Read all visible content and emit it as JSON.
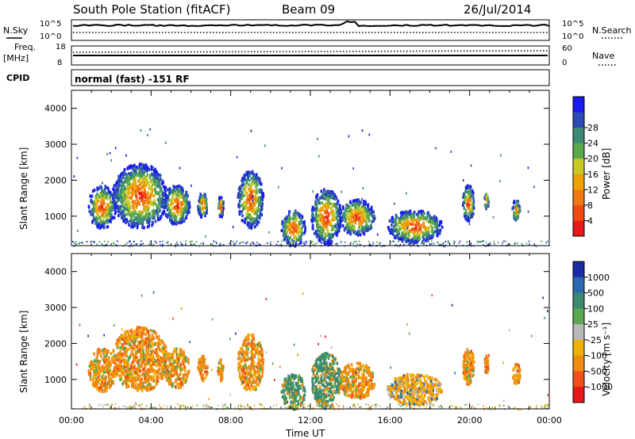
{
  "header": {
    "station": "South Pole Station (fitACF)",
    "beam": "Beam 09",
    "date": "26/Jul/2014"
  },
  "noise_panel": {
    "left_label": "N.Sky",
    "right_label": "N.Search",
    "left_ticks": [
      "10^5",
      "10^0"
    ],
    "right_ticks": [
      "10^5",
      "10^0"
    ]
  },
  "freq_panel": {
    "left_label_line1": "Freq.",
    "left_label_line2": "[MHz]",
    "right_label": "Nave",
    "left_ticks": [
      "18",
      "8"
    ],
    "right_ticks": [
      "60",
      "0"
    ]
  },
  "cpid_panel": {
    "label": "CPID",
    "text": "normal (fast) -151 RF"
  },
  "axes": {
    "xlabel": "Time UT",
    "x_ticks": [
      "00:00",
      "04:00",
      "08:00",
      "12:00",
      "16:00",
      "20:00",
      "00:00"
    ],
    "ylabel": "Slant Range [km]",
    "y_ticks": [
      "1000",
      "2000",
      "3000",
      "4000"
    ],
    "ylim": [
      180,
      4500
    ]
  },
  "power_colorbar": {
    "label": "Power [dB]",
    "ticks": [
      "4",
      "8",
      "12",
      "16",
      "20",
      "24",
      "28"
    ],
    "colors": [
      "#1a1af0",
      "#2a4ab8",
      "#3c8a72",
      "#5aa84a",
      "#c8c828",
      "#f0a000",
      "#f07a10",
      "#f04a10",
      "#e81818"
    ]
  },
  "velocity_colorbar": {
    "label": "Velocity [m s⁻¹]",
    "ticks": [
      "1000",
      "500",
      "100",
      "25",
      "-25",
      "-100",
      "-500",
      "-1000"
    ],
    "colors": [
      "#1a2aa8",
      "#2a6ab0",
      "#3c8a6e",
      "#5aa850",
      "#b8b8b8",
      "#f0b000",
      "#f08a10",
      "#f05018",
      "#e81818"
    ]
  },
  "chart_data": {
    "type": "heatmap",
    "x_range_hours": [
      0,
      24
    ],
    "y_range_km": [
      180,
      4500
    ],
    "echo_regions": [
      {
        "t0": 0.8,
        "t1": 2.2,
        "r0": 700,
        "r1": 1900
      },
      {
        "t0": 2.0,
        "t1": 4.8,
        "r0": 700,
        "r1": 2500
      },
      {
        "t0": 4.6,
        "t1": 5.9,
        "r0": 800,
        "r1": 1900
      },
      {
        "t0": 6.3,
        "t1": 6.8,
        "r0": 1000,
        "r1": 1700
      },
      {
        "t0": 7.3,
        "t1": 7.6,
        "r0": 1000,
        "r1": 1600
      },
      {
        "t0": 8.3,
        "t1": 9.6,
        "r0": 700,
        "r1": 2300
      },
      {
        "t0": 10.5,
        "t1": 11.7,
        "r0": 200,
        "r1": 1200
      },
      {
        "t0": 12.0,
        "t1": 13.5,
        "r0": 250,
        "r1": 1800
      },
      {
        "t0": 13.4,
        "t1": 15.2,
        "r0": 500,
        "r1": 1500
      },
      {
        "t0": 15.8,
        "t1": 18.6,
        "r0": 300,
        "r1": 1200
      },
      {
        "t0": 19.6,
        "t1": 20.2,
        "r0": 900,
        "r1": 1900
      },
      {
        "t0": 20.7,
        "t1": 20.9,
        "r0": 1200,
        "r1": 1700
      },
      {
        "t0": 22.1,
        "t1": 22.5,
        "r0": 900,
        "r1": 1500
      }
    ]
  }
}
